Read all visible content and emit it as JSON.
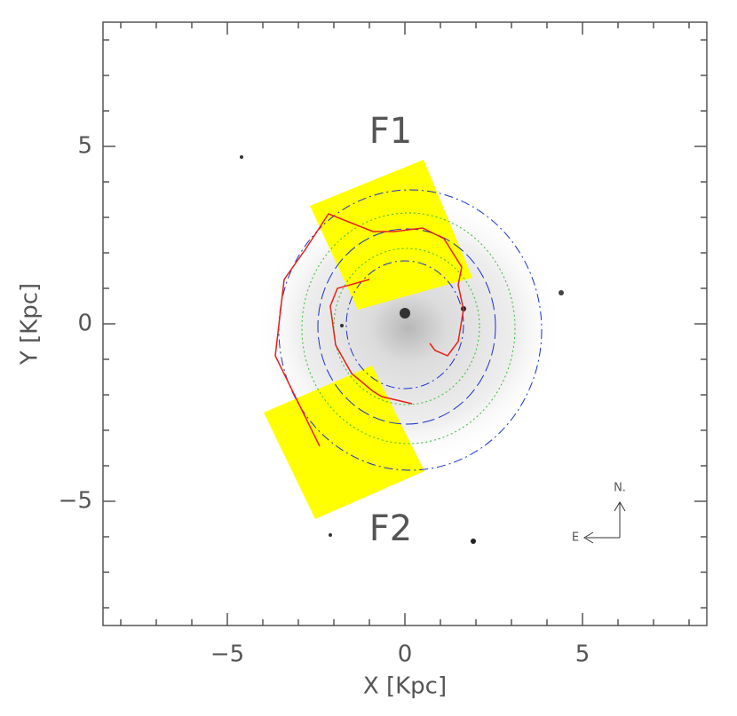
{
  "chart_data": {
    "type": "line",
    "xlabel": "X [Kpc]",
    "ylabel": "Y [Kpc]",
    "xlim": [
      -8.5,
      8.5
    ],
    "ylim": [
      -8.5,
      8.5
    ],
    "xticks": [
      {
        "value": -5,
        "label": "−5"
      },
      0,
      5
    ],
    "yticks": [
      {
        "value": -5,
        "label": "−5"
      },
      0,
      5
    ],
    "xminorticks": [
      -8,
      -7,
      -6,
      -4,
      -3,
      -2,
      -1,
      1,
      2,
      3,
      4,
      6,
      7,
      8
    ],
    "yminorticks": [
      -8,
      -7,
      -6,
      -4,
      -3,
      -2,
      -1,
      1,
      2,
      3,
      4,
      6,
      7,
      8
    ],
    "annotations": [
      "F1",
      "F2",
      "N.",
      "E"
    ],
    "series": [
      {
        "color": "#e8201a",
        "x": [
          -2.4,
          -3.65,
          -3.4,
          -2.8,
          -2.15,
          -1.4,
          -0.9,
          -0.3,
          0.5,
          1.1,
          1.6,
          1.5,
          1.65,
          1.5,
          1.2,
          0.85,
          0.7
        ],
        "values": [
          -3.45,
          -0.9,
          1.25,
          2.1,
          3.1,
          2.8,
          2.6,
          2.6,
          2.7,
          2.4,
          1.6,
          1.1,
          0.4,
          -0.5,
          -0.9,
          -0.75,
          -0.55
        ]
      },
      {
        "color": "#e8201a",
        "x": [
          -1.0,
          -1.9,
          -2.1,
          -1.95,
          -1.5,
          -0.9,
          -0.65,
          0.2
        ],
        "values": [
          1.25,
          1.0,
          0.5,
          -0.6,
          -1.4,
          -1.9,
          -2.05,
          -2.25
        ]
      }
    ]
  }
}
